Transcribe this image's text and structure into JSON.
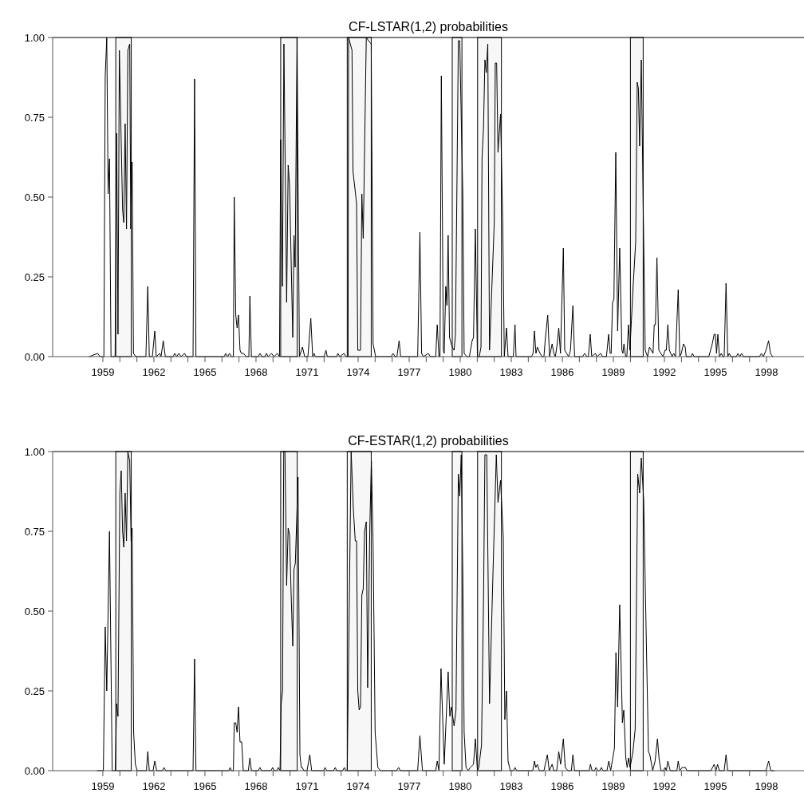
{
  "chart_data": [
    {
      "type": "line",
      "title": "CF-LSTAR(1,2) probabilities",
      "xlim": [
        1956.05,
        2000.2
      ],
      "ylim": [
        0,
        1
      ],
      "yticks": [
        {
          "value": 0,
          "label": "0.00"
        },
        {
          "value": 0.25,
          "label": "0.25"
        },
        {
          "value": 0.5,
          "label": "0.50"
        },
        {
          "value": 0.75,
          "label": "0.75"
        },
        {
          "value": 1,
          "label": "1.00"
        }
      ],
      "xticks": [
        1959,
        {
          "value": 1960,
          "label": null
        },
        {
          "value": 1961,
          "label": null
        },
        1962,
        {
          "value": 1963,
          "label": null
        },
        {
          "value": 1964,
          "label": null
        },
        1965,
        {
          "value": 1966,
          "label": null
        },
        {
          "value": 1967,
          "label": null
        },
        1968,
        {
          "value": 1969,
          "label": null
        },
        {
          "value": 1970,
          "label": null
        },
        1971,
        {
          "value": 1972,
          "label": null
        },
        {
          "value": 1973,
          "label": null
        },
        1974,
        {
          "value": 1975,
          "label": null
        },
        {
          "value": 1976,
          "label": null
        },
        1977,
        {
          "value": 1978,
          "label": null
        },
        {
          "value": 1979,
          "label": null
        },
        1980,
        {
          "value": 1981,
          "label": null
        },
        {
          "value": 1982,
          "label": null
        },
        1983,
        {
          "value": 1984,
          "label": null
        },
        {
          "value": 1985,
          "label": null
        },
        1986,
        {
          "value": 1987,
          "label": null
        },
        {
          "value": 1988,
          "label": null
        },
        1989,
        {
          "value": 1990,
          "label": null
        },
        {
          "value": 1991,
          "label": null
        },
        1992,
        {
          "value": 1993,
          "label": null
        },
        {
          "value": 1994,
          "label": null
        },
        1995,
        {
          "value": 1996,
          "label": null
        },
        {
          "value": 1997,
          "label": null
        },
        1998
      ],
      "bands": [
        {
          "axis": "x",
          "from": 1959.76,
          "to": 1960.67,
          "color": "#f7f7f7"
        },
        {
          "axis": "x",
          "from": 1969.45,
          "to": 1970.42,
          "color": "#f7f7f7"
        },
        {
          "axis": "x",
          "from": 1973.36,
          "to": 1974.77,
          "color": "#f7f7f7"
        },
        {
          "axis": "x",
          "from": 1979.53,
          "to": 1980.1,
          "color": "#f7f7f7"
        },
        {
          "axis": "x",
          "from": 1981.02,
          "to": 1982.42,
          "color": "#f7f7f7"
        },
        {
          "axis": "x",
          "from": 1990.0,
          "to": 1990.75,
          "color": "#f7f7f7"
        }
      ],
      "series": [
        {
          "color": "#000000",
          "x": [
            1958.2,
            1958.7,
            1958.83,
            1959.06,
            1959.14,
            1959.23,
            1959.31,
            1959.39,
            1959.48,
            1959.72,
            1959.81,
            1959.89,
            1959.97,
            1960.16,
            1960.23,
            1960.31,
            1960.39,
            1960.47,
            1960.58,
            1960.64,
            1960.72,
            1960.8,
            1960.94,
            1961.53,
            1961.64,
            1961.73,
            1961.91,
            1962.05,
            1962.14,
            1962.34,
            1962.42,
            1962.55,
            1962.67,
            1963.13,
            1963.23,
            1963.34,
            1963.47,
            1963.59,
            1963.8,
            1963.91,
            1964.3,
            1964.39,
            1964.47,
            1966.13,
            1966.22,
            1966.33,
            1966.44,
            1966.56,
            1966.67,
            1966.72,
            1966.81,
            1966.89,
            1966.97,
            1967.06,
            1967.14,
            1967.27,
            1967.42,
            1967.58,
            1967.64,
            1967.73,
            1968.13,
            1968.23,
            1968.34,
            1968.52,
            1968.61,
            1968.72,
            1968.91,
            1969.06,
            1969.25,
            1969.38,
            1969.45,
            1969.55,
            1969.64,
            1969.8,
            1969.89,
            1969.97,
            1970.16,
            1970.23,
            1970.3,
            1970.41,
            1970.55,
            1970.73,
            1970.86,
            1971.05,
            1971.22,
            1971.33,
            1971.41,
            1971.48,
            1972.0,
            1972.11,
            1972.19,
            1972.73,
            1972.81,
            1972.92,
            1973.17,
            1973.28,
            1973.41,
            1973.44,
            1973.64,
            1973.7,
            1973.91,
            1973.98,
            1974.14,
            1974.22,
            1974.3,
            1974.48,
            1974.61,
            1974.77,
            1974.88,
            1975.03,
            1975.94,
            1976.05,
            1976.17,
            1976.28,
            1976.41,
            1976.5,
            1977.5,
            1977.63,
            1977.73,
            1977.84,
            1978.12,
            1978.25,
            1978.56,
            1978.65,
            1978.75,
            1978.81,
            1978.89,
            1979.01,
            1979.06,
            1979.15,
            1979.22,
            1979.29,
            1979.37,
            1979.53,
            1979.64,
            1979.72,
            1979.89,
            1979.97,
            1980.15,
            1980.23,
            1980.39,
            1980.54,
            1980.7,
            1980.78,
            1980.89,
            1981.01,
            1981.12,
            1981.22,
            1981.28,
            1981.37,
            1981.45,
            1981.53,
            1981.62,
            1981.72,
            1982.0,
            1982.06,
            1982.14,
            1982.22,
            1982.37,
            1982.5,
            1982.59,
            1982.72,
            1982.81,
            1983.12,
            1983.22,
            1983.28,
            1984.19,
            1984.28,
            1984.36,
            1984.45,
            1984.53,
            1984.69,
            1984.81,
            1984.92,
            1984.99,
            1985.14,
            1985.25,
            1985.4,
            1985.5,
            1985.59,
            1985.7,
            1985.79,
            1985.89,
            1986.06,
            1986.14,
            1986.25,
            1986.37,
            1986.48,
            1986.62,
            1986.72,
            1987.19,
            1987.31,
            1987.44,
            1987.53,
            1987.64,
            1987.73,
            1987.94,
            1988.04,
            1988.25,
            1988.36,
            1988.59,
            1988.72,
            1988.81,
            1988.87,
            1988.95,
            1989.03,
            1989.14,
            1989.25,
            1989.37,
            1989.5,
            1989.56,
            1989.62,
            1989.72,
            1989.79,
            1989.89,
            1989.97,
            1990.15,
            1990.31,
            1990.4,
            1990.47,
            1990.54,
            1990.64,
            1990.75,
            1990.87,
            1991.01,
            1991.12,
            1991.33,
            1991.4,
            1991.47,
            1991.56,
            1991.67,
            1991.79,
            1991.92,
            1992.03,
            1992.11,
            1992.2,
            1992.29,
            1992.45,
            1992.54,
            1992.65,
            1992.81,
            1992.9,
            1992.99,
            1993.12,
            1993.22,
            1993.28,
            1993.56,
            1993.65,
            1993.74,
            1994.61,
            1994.81,
            1994.92,
            1994.99,
            1995.06,
            1995.14,
            1995.23,
            1995.34,
            1995.43,
            1995.51,
            1995.62,
            1995.72,
            1995.81,
            1995.9,
            1996.22,
            1996.32,
            1996.43,
            1996.53,
            1996.64,
            1997.58,
            1997.7,
            1997.81,
            1997.97,
            1998.12,
            1998.23,
            1998.36
          ],
          "values": [
            0,
            0.01,
            0,
            0,
            0.88,
            1,
            0.51,
            0.62,
            0,
            0,
            0.7,
            0.07,
            0.96,
            0.46,
            0.42,
            0.73,
            0.4,
            0.96,
            0.98,
            0.4,
            0.61,
            0.01,
            0,
            0,
            0.22,
            0,
            0,
            0.08,
            0,
            0.01,
            0,
            0.05,
            0,
            0,
            0.01,
            0,
            0.01,
            0,
            0.01,
            0,
            0,
            0.87,
            0,
            0,
            0.01,
            0,
            0.01,
            0,
            0,
            0.5,
            0.13,
            0.09,
            0.13,
            0.02,
            0.01,
            0.01,
            0,
            0,
            0.19,
            0,
            0,
            0.01,
            0,
            0,
            0.01,
            0,
            0.01,
            0,
            0.01,
            0,
            0.68,
            0.22,
            0.98,
            0.17,
            0.6,
            0.54,
            0.06,
            0.38,
            0.28,
            1,
            0,
            0.03,
            0,
            0,
            0.12,
            0,
            0.01,
            0,
            0,
            0.02,
            0,
            0,
            0.01,
            0,
            0.01,
            0,
            0,
            1,
            0.96,
            0.58,
            0.48,
            0.02,
            0.02,
            0.51,
            0.37,
            1,
            0.99,
            0.98,
            0.04,
            0,
            0,
            0.01,
            0,
            0,
            0.05,
            0,
            0,
            0.39,
            0.01,
            0,
            0.01,
            0,
            0,
            0.1,
            0,
            0,
            0.88,
            0.02,
            0.01,
            0.22,
            0.16,
            0.38,
            0.06,
            0.03,
            0.02,
            0.07,
            0.99,
            0.99,
            0.51,
            0.01,
            0,
            0,
            0.05,
            0.06,
            0.4,
            0,
            0,
            0.03,
            0.62,
            0.72,
            0.93,
            0.89,
            0.98,
            0.02,
            0.42,
            0.92,
            0.92,
            0.64,
            0.76,
            0.41,
            0,
            0.09,
            0,
            0,
            0.1,
            0,
            0,
            0.01,
            0.08,
            0.01,
            0.03,
            0.01,
            0,
            0,
            0.05,
            0.13,
            0,
            0.04,
            0.01,
            0,
            0.04,
            0.09,
            0.01,
            0.34,
            0.02,
            0.01,
            0,
            0.02,
            0.16,
            0,
            0,
            0.01,
            0,
            0,
            0.07,
            0,
            0.01,
            0,
            0.01,
            0,
            0,
            0.07,
            0.01,
            0.01,
            0.17,
            0.18,
            0.64,
            0.08,
            0.34,
            0.02,
            0.01,
            0.04,
            0,
            0,
            0.1,
            0.02,
            0.21,
            0.36,
            0.86,
            0.84,
            0.66,
            0.93,
            0.48,
            0.02,
            0,
            0.03,
            0.01,
            0.1,
            0.1,
            0.31,
            0.02,
            0.01,
            0,
            0.02,
            0.02,
            0.1,
            0.02,
            0,
            0.01,
            0,
            0.21,
            0,
            0.01,
            0.04,
            0.03,
            0,
            0,
            0.01,
            0,
            0,
            0.04,
            0.07,
            0.07,
            0.01,
            0.07,
            0,
            0.01,
            0,
            0,
            0.23,
            0,
            0.01,
            0,
            0,
            0.01,
            0,
            0.01,
            0,
            0,
            0.01,
            0,
            0.02,
            0.05,
            0.01,
            0
          ]
        }
      ]
    },
    {
      "type": "line",
      "title": "CF-ESTAR(1,2) probabilities",
      "xlim": [
        1956.05,
        2000.2
      ],
      "ylim": [
        0,
        1
      ],
      "yticks": [
        {
          "value": 0,
          "label": "0.00"
        },
        {
          "value": 0.25,
          "label": "0.25"
        },
        {
          "value": 0.5,
          "label": "0.50"
        },
        {
          "value": 0.75,
          "label": "0.75"
        },
        {
          "value": 1,
          "label": "1.00"
        }
      ],
      "xticks": [
        1959,
        {
          "value": 1960,
          "label": null
        },
        {
          "value": 1961,
          "label": null
        },
        1962,
        {
          "value": 1963,
          "label": null
        },
        {
          "value": 1964,
          "label": null
        },
        1965,
        {
          "value": 1966,
          "label": null
        },
        {
          "value": 1967,
          "label": null
        },
        1968,
        {
          "value": 1969,
          "label": null
        },
        {
          "value": 1970,
          "label": null
        },
        1971,
        {
          "value": 1972,
          "label": null
        },
        {
          "value": 1973,
          "label": null
        },
        1974,
        {
          "value": 1975,
          "label": null
        },
        {
          "value": 1976,
          "label": null
        },
        1977,
        {
          "value": 1978,
          "label": null
        },
        {
          "value": 1979,
          "label": null
        },
        1980,
        {
          "value": 1981,
          "label": null
        },
        {
          "value": 1982,
          "label": null
        },
        1983,
        {
          "value": 1984,
          "label": null
        },
        {
          "value": 1985,
          "label": null
        },
        1986,
        {
          "value": 1987,
          "label": null
        },
        {
          "value": 1988,
          "label": null
        },
        1989,
        {
          "value": 1990,
          "label": null
        },
        {
          "value": 1991,
          "label": null
        },
        1992,
        {
          "value": 1993,
          "label": null
        },
        {
          "value": 1994,
          "label": null
        },
        1995,
        {
          "value": 1996,
          "label": null
        },
        {
          "value": 1997,
          "label": null
        },
        1998
      ],
      "bands": [
        {
          "axis": "x",
          "from": 1959.76,
          "to": 1960.67,
          "color": "#f7f7f7"
        },
        {
          "axis": "x",
          "from": 1969.45,
          "to": 1970.42,
          "color": "#f7f7f7"
        },
        {
          "axis": "x",
          "from": 1973.36,
          "to": 1974.77,
          "color": "#f7f7f7"
        },
        {
          "axis": "x",
          "from": 1979.53,
          "to": 1980.1,
          "color": "#f7f7f7"
        },
        {
          "axis": "x",
          "from": 1981.02,
          "to": 1982.42,
          "color": "#f7f7f7"
        },
        {
          "axis": "x",
          "from": 1990.0,
          "to": 1990.75,
          "color": "#f7f7f7"
        }
      ],
      "series": [
        {
          "color": "#000000",
          "x": [
            1958.67,
            1959.03,
            1959.14,
            1959.23,
            1959.39,
            1959.55,
            1959.73,
            1959.81,
            1959.89,
            1960.0,
            1960.08,
            1960.16,
            1960.23,
            1960.31,
            1960.39,
            1960.47,
            1960.58,
            1960.66,
            1960.72,
            1960.81,
            1960.91,
            1961.02,
            1961.56,
            1961.64,
            1961.73,
            1961.95,
            1962.05,
            1962.16,
            1962.5,
            1962.59,
            1962.7,
            1964.3,
            1964.39,
            1964.47,
            1966.41,
            1966.48,
            1966.56,
            1966.67,
            1966.72,
            1966.81,
            1966.89,
            1966.97,
            1967.06,
            1967.16,
            1967.25,
            1967.55,
            1967.64,
            1967.73,
            1968.13,
            1968.23,
            1968.33,
            1968.88,
            1968.98,
            1969.06,
            1969.22,
            1969.31,
            1969.41,
            1969.48,
            1969.56,
            1969.63,
            1969.7,
            1969.8,
            1969.89,
            1969.97,
            1970.06,
            1970.16,
            1970.23,
            1970.31,
            1970.47,
            1970.58,
            1970.66,
            1970.72,
            1970.81,
            1971.0,
            1971.16,
            1971.27,
            1971.97,
            1972.06,
            1972.16,
            1972.55,
            1972.66,
            1972.73,
            1973.09,
            1973.19,
            1973.28,
            1973.36,
            1973.59,
            1973.72,
            1973.83,
            1973.91,
            1973.98,
            1974.06,
            1974.14,
            1974.22,
            1974.3,
            1974.38,
            1974.48,
            1974.56,
            1974.69,
            1974.78,
            1974.88,
            1975.0,
            1975.16,
            1975.31,
            1976.25,
            1976.38,
            1976.48,
            1977.5,
            1977.63,
            1977.78,
            1978.56,
            1978.65,
            1978.75,
            1978.87,
            1979.06,
            1979.29,
            1979.39,
            1979.48,
            1979.64,
            1979.75,
            1979.89,
            1979.97,
            1980.06,
            1980.15,
            1980.23,
            1980.34,
            1980.47,
            1980.59,
            1980.78,
            1980.89,
            1981.01,
            1981.09,
            1981.25,
            1981.37,
            1981.45,
            1981.56,
            1981.72,
            1981.95,
            1982.12,
            1982.22,
            1982.37,
            1982.53,
            1982.62,
            1982.72,
            1982.81,
            1982.94,
            1983.12,
            1983.22,
            1983.31,
            1984.26,
            1984.36,
            1984.44,
            1984.53,
            1984.65,
            1984.92,
            1985.12,
            1985.23,
            1985.4,
            1985.5,
            1985.67,
            1985.79,
            1985.9,
            1986.06,
            1986.17,
            1986.33,
            1986.53,
            1986.62,
            1986.72,
            1987.58,
            1987.65,
            1987.75,
            1987.89,
            1987.98,
            1988.08,
            1988.2,
            1988.29,
            1988.39,
            1988.62,
            1988.73,
            1988.84,
            1989.06,
            1989.15,
            1989.25,
            1989.37,
            1989.53,
            1989.61,
            1989.73,
            1989.81,
            1989.89,
            1989.98,
            1990.15,
            1990.28,
            1990.43,
            1990.54,
            1990.64,
            1990.78,
            1990.94,
            1991.06,
            1991.14,
            1991.31,
            1991.45,
            1991.59,
            1991.68,
            1991.79,
            1991.95,
            1992.04,
            1992.11,
            1992.2,
            1992.34,
            1992.73,
            1992.81,
            1992.9,
            1993.04,
            1993.23,
            1993.33,
            1994.73,
            1994.92,
            1995.03,
            1995.12,
            1995.23,
            1995.51,
            1995.62,
            1995.72,
            1997.97,
            1998.12,
            1998.25,
            1998.44
          ],
          "values": [
            0,
            0,
            0.45,
            0.25,
            0.75,
            0,
            0,
            0.21,
            0.17,
            0.87,
            0.94,
            0.75,
            0.7,
            0.87,
            0.72,
            1,
            0.97,
            0.72,
            0.76,
            0.12,
            0.02,
            0,
            0,
            0.06,
            0,
            0,
            0.03,
            0,
            0,
            0.01,
            0,
            0,
            0.35,
            0,
            0,
            0.01,
            0,
            0,
            0.15,
            0.15,
            0.12,
            0.2,
            0.09,
            0.09,
            0,
            0,
            0.04,
            0,
            0,
            0.01,
            0,
            0,
            0.01,
            0,
            0,
            0.01,
            0,
            0.21,
            0.25,
            1,
            1,
            0.58,
            0.76,
            0.74,
            0.56,
            0.39,
            0.63,
            0.65,
            0.92,
            0.05,
            0.01,
            0.01,
            0,
            0,
            0.05,
            0,
            0,
            0.01,
            0,
            0,
            0.01,
            0,
            0,
            0.01,
            0,
            0,
            1,
            0.82,
            0.72,
            0.72,
            0.25,
            0.19,
            0.2,
            0.55,
            0.57,
            0.75,
            0.78,
            0.26,
            0.77,
            0.97,
            0.71,
            0.12,
            0.01,
            0,
            0,
            0.01,
            0,
            0,
            0.11,
            0,
            0,
            0.03,
            0,
            0.32,
            0.02,
            0.31,
            0.17,
            0.2,
            0.14,
            0.19,
            0.93,
            0.86,
            0.99,
            0.62,
            0.12,
            0.01,
            0,
            0.01,
            0.02,
            0.1,
            0,
            0.01,
            0.08,
            0.54,
            0.99,
            0.99,
            0.21,
            0.67,
            0.99,
            0.84,
            0.91,
            0.73,
            0.16,
            0.25,
            0.03,
            0,
            0,
            0.01,
            0,
            0,
            0.03,
            0.01,
            0.02,
            0,
            0,
            0.05,
            0,
            0.02,
            0,
            0,
            0.06,
            0.02,
            0.1,
            0.01,
            0,
            0,
            0.05,
            0,
            0,
            0.02,
            0,
            0,
            0.01,
            0,
            0,
            0.01,
            0,
            0,
            0.03,
            0,
            0.07,
            0.37,
            0.2,
            0.52,
            0.15,
            0.19,
            0.04,
            0.01,
            0.04,
            0.01,
            0.06,
            0.13,
            0.93,
            0.87,
            0.98,
            0.85,
            0.39,
            0.06,
            0.05,
            0,
            0.03,
            0.1,
            0.04,
            0,
            0,
            0.01,
            0,
            0.03,
            0,
            0,
            0.03,
            0,
            0.01,
            0.01,
            0,
            0,
            0.02,
            0,
            0.02,
            0,
            0,
            0.05,
            0,
            0,
            0.03,
            0,
            0
          ]
        }
      ]
    }
  ]
}
